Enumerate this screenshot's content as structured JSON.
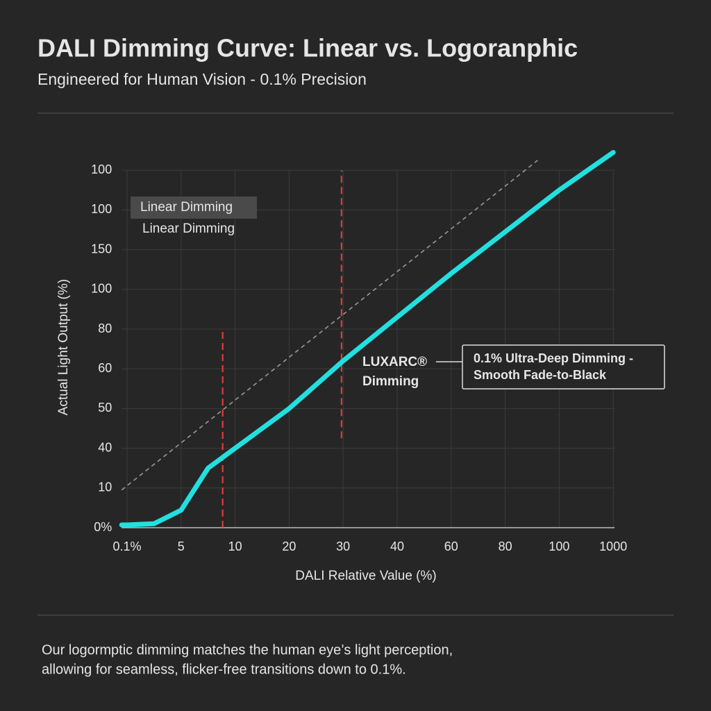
{
  "header": {
    "title": "DALI Dimming Curve: Linear vs. Logoranphic",
    "subtitle": "Engineered for Human Vision - 0.1% Precision"
  },
  "chart_data": {
    "type": "line",
    "x_label": "DALI Relative Value (%)",
    "y_label": "Actual Light Output (%)",
    "xlim": [
      -0.1,
      9
    ],
    "ylim": [
      0,
      9.5
    ],
    "xticks": [
      {
        "value": 0,
        "label": "0.1%"
      },
      {
        "value": 1,
        "label": "5"
      },
      {
        "value": 2,
        "label": "10"
      },
      {
        "value": 3,
        "label": "20"
      },
      {
        "value": 4,
        "label": "30"
      },
      {
        "value": 5,
        "label": "40"
      },
      {
        "value": 6,
        "label": "60"
      },
      {
        "value": 7,
        "label": "80"
      },
      {
        "value": 8,
        "label": "100"
      },
      {
        "value": 9,
        "label": "1000"
      }
    ],
    "yticks": [
      {
        "value": 0,
        "label": "0%"
      },
      {
        "value": 1,
        "label": "10"
      },
      {
        "value": 2,
        "label": "40"
      },
      {
        "value": 3,
        "label": "50"
      },
      {
        "value": 4,
        "label": "60"
      },
      {
        "value": 5,
        "label": "80"
      },
      {
        "value": 6,
        "label": "100"
      },
      {
        "value": 7,
        "label": "150"
      },
      {
        "value": 8,
        "label": "100"
      },
      {
        "value": 9,
        "label": "100"
      }
    ],
    "grid": true,
    "series": [
      {
        "name": "LUXARC® Dimming",
        "color": "#22e0e0",
        "x": [
          -0.1,
          0,
          0.5,
          1,
          1.5,
          2,
          3,
          4,
          5,
          6,
          7,
          8,
          9
        ],
        "values": [
          0.07,
          0.07,
          0.1,
          0.44,
          1.5,
          2.0,
          3.0,
          4.2,
          5.3,
          6.4,
          7.45,
          8.5,
          9.45
        ]
      }
    ],
    "reference_line": {
      "color": "#9a9a9a",
      "x": [
        -0.1,
        7.6
      ],
      "values": [
        0.95,
        9.25
      ]
    },
    "markers": [
      {
        "color": "#e03a3a",
        "x": 1.77,
        "values": [
          0,
          5
        ]
      },
      {
        "color": "#e03a3a",
        "x": 3.97,
        "values": [
          2.25,
          9
        ]
      }
    ],
    "legend": [
      "Linear Dimming",
      "Linear Dimming"
    ],
    "callout": "0.1% Ultra-Deep Dimming -\nSmooth Fade-to-Black"
  },
  "footer": {
    "lines": [
      "Our logormptic dimming matches the human eye’s light perception,",
      "allowing for seamless, flicker-free transitions down to 0.1%."
    ]
  }
}
